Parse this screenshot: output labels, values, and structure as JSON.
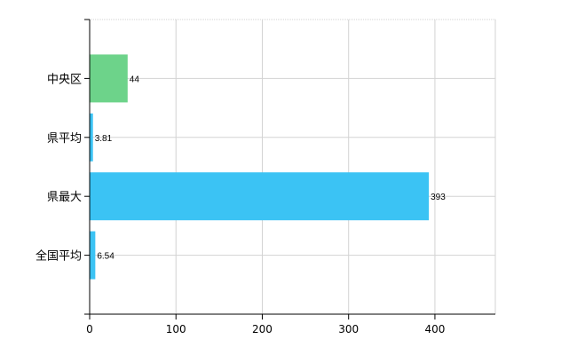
{
  "chart_data": {
    "type": "bar",
    "orientation": "horizontal",
    "categories": [
      "中央区",
      "県平均",
      "県最大",
      "全国平均"
    ],
    "values": [
      44,
      3.81,
      393,
      6.54
    ],
    "value_labels": [
      "44",
      "3.81",
      "393",
      "6.54"
    ],
    "bar_colors": [
      "#6dd38a",
      "#3bc3f4",
      "#3bc3f4",
      "#3bc3f4"
    ],
    "xlim": [
      0,
      470
    ],
    "xticks": [
      0,
      100,
      200,
      300,
      400
    ],
    "grid": true,
    "legend": "none"
  }
}
